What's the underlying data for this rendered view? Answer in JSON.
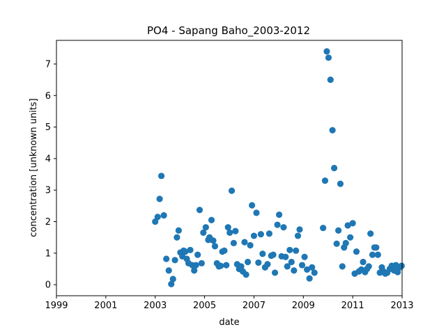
{
  "chart_data": {
    "type": "scatter",
    "title": "PO4 - Sapang Baho_2003-2012",
    "xlabel": "date",
    "ylabel": "concentration [unknown units]",
    "xlim": [
      1999,
      2013
    ],
    "ylim": [
      -0.35,
      7.75
    ],
    "xticks": [
      "1999",
      "2001",
      "2003",
      "2005",
      "2007",
      "2009",
      "2011",
      "2013"
    ],
    "yticks": [
      "0",
      "1",
      "2",
      "3",
      "4",
      "5",
      "6",
      "7"
    ],
    "grid": false,
    "legend": "none",
    "color": "#1f77b4",
    "series": [
      {
        "x": [
          2003.0,
          2003.1,
          2003.18,
          2003.25,
          2003.35,
          2003.45,
          2003.55,
          2003.65,
          2003.72,
          2003.8,
          2003.88,
          2003.95,
          2004.02,
          2004.1,
          2004.15,
          2004.22,
          2004.28,
          2004.35,
          2004.42,
          2004.5,
          2004.58,
          2004.65,
          2004.72,
          2004.8,
          2004.88,
          2004.95,
          2005.05,
          2005.15,
          2005.2,
          2005.28,
          2005.35,
          2005.42,
          2005.5,
          2005.58,
          2005.65,
          2005.72,
          2005.8,
          2005.88,
          2005.95,
          2006.02,
          2006.1,
          2006.18,
          2006.25,
          2006.32,
          2006.4,
          2006.48,
          2006.55,
          2006.62,
          2006.68,
          2006.75,
          2006.85,
          2006.92,
          2007.0,
          2007.1,
          2007.18,
          2007.28,
          2007.35,
          2007.45,
          2007.55,
          2007.62,
          2007.7,
          2007.78,
          2007.85,
          2007.95,
          2008.02,
          2008.12,
          2008.2,
          2008.28,
          2008.35,
          2008.45,
          2008.52,
          2008.62,
          2008.7,
          2008.78,
          2008.85,
          2008.95,
          2009.05,
          2009.15,
          2009.25,
          2009.35,
          2009.45,
          2009.8,
          2009.88,
          2009.95,
          2010.02,
          2010.1,
          2010.18,
          2010.25,
          2010.35,
          2010.42,
          2010.5,
          2010.58,
          2010.65,
          2010.72,
          2010.8,
          2010.9,
          2011.0,
          2011.08,
          2011.15,
          2011.25,
          2011.35,
          2011.42,
          2011.5,
          2011.58,
          2011.65,
          2011.72,
          2011.8,
          2011.88,
          2011.95,
          2012.02,
          2012.1,
          2012.18,
          2012.25,
          2012.32,
          2012.4,
          2012.5,
          2012.58,
          2012.68,
          2012.75,
          2012.82,
          2012.9,
          2012.98
        ],
        "y": [
          2.0,
          2.15,
          2.72,
          3.45,
          2.2,
          0.82,
          0.45,
          0.02,
          0.18,
          0.78,
          1.5,
          1.72,
          1.02,
          0.9,
          1.08,
          1.05,
          0.82,
          0.68,
          1.1,
          0.62,
          0.45,
          0.62,
          0.95,
          2.37,
          0.68,
          1.65,
          1.82,
          1.42,
          1.5,
          2.05,
          1.4,
          1.22,
          0.68,
          0.58,
          0.6,
          1.05,
          1.08,
          0.62,
          1.82,
          1.65,
          2.98,
          1.32,
          1.7,
          0.65,
          0.5,
          0.58,
          0.42,
          1.35,
          0.32,
          0.72,
          1.25,
          2.52,
          1.55,
          2.28,
          0.7,
          1.6,
          0.98,
          0.55,
          0.65,
          1.62,
          0.92,
          0.95,
          0.38,
          1.9,
          2.22,
          0.9,
          1.82,
          0.88,
          0.58,
          1.1,
          0.72,
          0.45,
          1.08,
          1.55,
          1.75,
          0.62,
          0.88,
          0.48,
          0.2,
          0.55,
          0.38,
          1.8,
          3.3,
          7.4,
          7.2,
          6.5,
          4.9,
          3.7,
          1.3,
          1.72,
          3.2,
          0.58,
          1.18,
          1.32,
          1.88,
          1.5,
          1.95,
          0.35,
          1.05,
          0.42,
          0.48,
          0.72,
          0.4,
          0.5,
          0.58,
          1.62,
          0.95,
          1.18,
          1.18,
          0.95,
          0.38,
          0.55,
          0.42,
          0.35,
          0.38,
          0.5,
          0.6,
          0.45,
          0.62,
          0.4,
          0.55,
          0.6
        ]
      }
    ]
  }
}
